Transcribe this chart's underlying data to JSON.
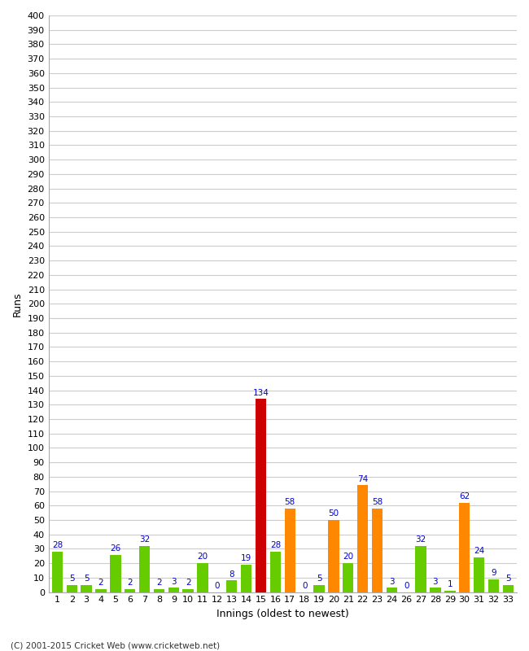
{
  "values": [
    28,
    5,
    5,
    2,
    26,
    2,
    32,
    2,
    3,
    2,
    20,
    0,
    8,
    19,
    134,
    28,
    58,
    0,
    5,
    50,
    20,
    74,
    58,
    3,
    0,
    32,
    3,
    1,
    62,
    24,
    9,
    5
  ],
  "colors": [
    "#66cc00",
    "#66cc00",
    "#66cc00",
    "#66cc00",
    "#66cc00",
    "#66cc00",
    "#66cc00",
    "#66cc00",
    "#66cc00",
    "#66cc00",
    "#66cc00",
    "#66cc00",
    "#66cc00",
    "#66cc00",
    "#cc0000",
    "#66cc00",
    "#ff8800",
    "#66cc00",
    "#66cc00",
    "#ff8800",
    "#66cc00",
    "#ff8800",
    "#ff8800",
    "#66cc00",
    "#66cc00",
    "#66cc00",
    "#66cc00",
    "#66cc00",
    "#ff8800",
    "#66cc00",
    "#66cc00",
    "#66cc00"
  ],
  "xtick_labels": [
    "1",
    "2",
    "3",
    "4",
    "5",
    "6",
    "7",
    "8",
    "9",
    "10",
    "11",
    "12",
    "13",
    "14",
    "15",
    "16",
    "17",
    "18",
    "19",
    "20",
    "21",
    "22",
    "23",
    "24",
    "26",
    "27",
    "28",
    "29",
    "30",
    "31",
    "32",
    "33"
  ],
  "ylabel": "Runs",
  "xlabel": "Innings (oldest to newest)",
  "ylim": [
    0,
    400
  ],
  "background_color": "#ffffff",
  "grid_color": "#cccccc",
  "label_color": "#0000cc",
  "footer": "(C) 2001-2015 Cricket Web (www.cricketweb.net)"
}
